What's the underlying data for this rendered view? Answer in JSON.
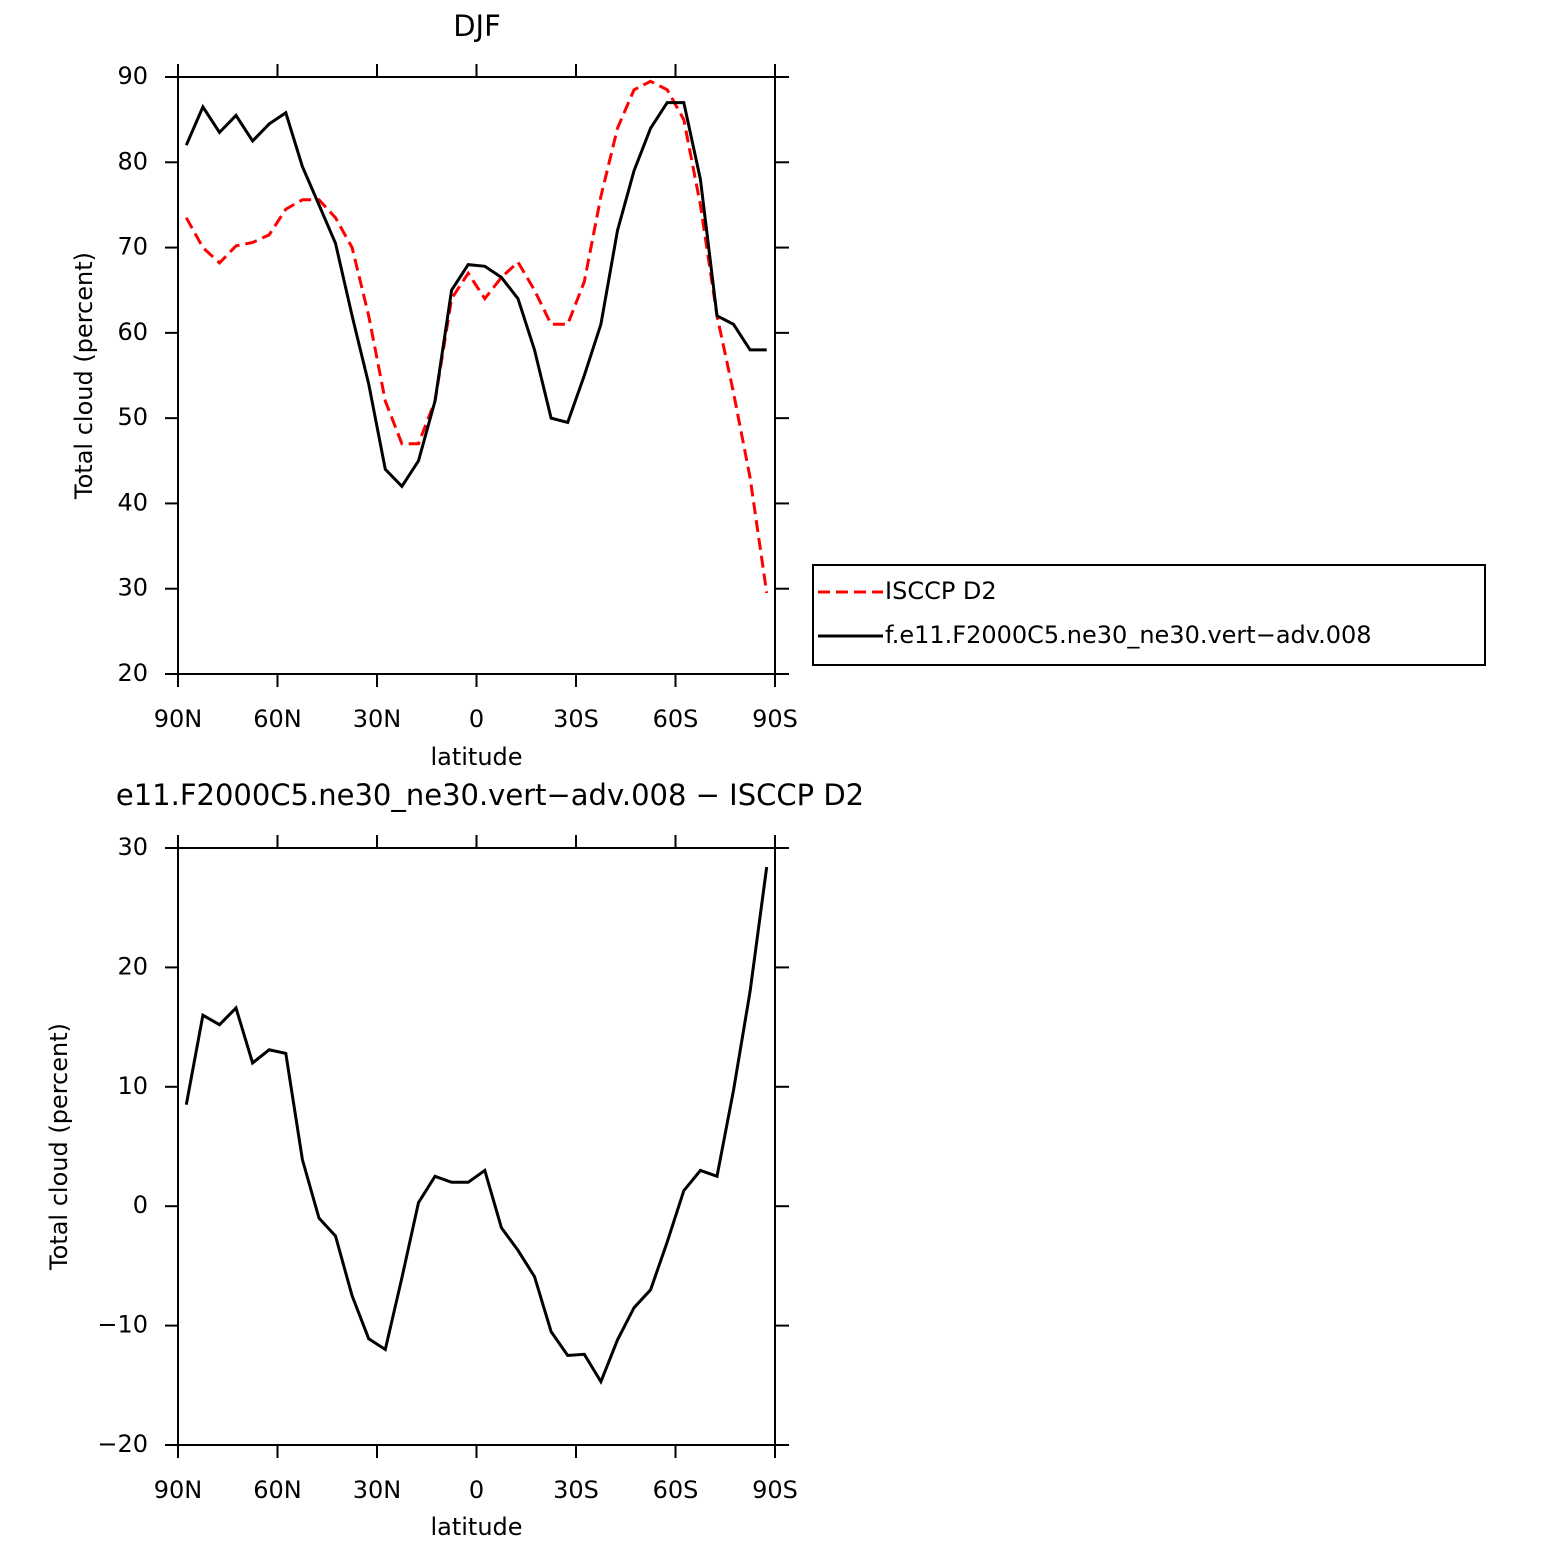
{
  "chart_data": [
    {
      "type": "line",
      "title": "DJF",
      "xlabel": "latitude",
      "ylabel": "Total cloud (percent)",
      "x": [
        87.5,
        82.5,
        77.5,
        72.5,
        67.5,
        62.5,
        57.5,
        52.5,
        47.5,
        42.5,
        37.5,
        32.5,
        27.5,
        22.5,
        17.5,
        12.5,
        7.5,
        2.5,
        -2.5,
        -7.5,
        -12.5,
        -17.5,
        -22.5,
        -27.5,
        -32.5,
        -37.5,
        -42.5,
        -47.5,
        -52.5,
        -57.5,
        -62.5,
        -67.5,
        -72.5,
        -77.5,
        -82.5,
        -87.5
      ],
      "xlim": [
        90,
        -90
      ],
      "xticks": [
        {
          "value": 90,
          "label": "90N"
        },
        {
          "value": 60,
          "label": "60N"
        },
        {
          "value": 30,
          "label": "30N"
        },
        0,
        {
          "value": -30,
          "label": "30S"
        },
        {
          "value": -60,
          "label": "60S"
        },
        {
          "value": -90,
          "label": "90S"
        }
      ],
      "ylim": [
        20,
        90
      ],
      "yticks": [
        20,
        30,
        40,
        50,
        60,
        70,
        80,
        90
      ],
      "legend": "outside-right",
      "series": [
        {
          "name": "ISCCP D2",
          "color": "#ff0000",
          "linestyle": "dashed",
          "values": [
            73.5,
            70,
            68.2,
            70.2,
            70.6,
            71.5,
            74.5,
            75.6,
            75.6,
            73.5,
            70,
            62,
            52,
            47,
            47,
            52,
            64,
            67,
            64,
            66.5,
            68.3,
            65,
            61,
            61,
            66,
            76,
            84,
            88.5,
            89.5,
            88.5,
            85,
            75,
            62,
            53,
            43,
            29.5
          ]
        },
        {
          "name": "f.e11.F2000C5.ne30_ne30.vert−adv.008",
          "color": "#000000",
          "linestyle": "solid",
          "values": [
            82,
            86.5,
            83.5,
            85.5,
            82.5,
            84.5,
            85.8,
            79.5,
            75,
            70.5,
            62,
            54,
            44,
            42,
            45,
            52,
            65,
            68,
            67.8,
            66.5,
            64,
            58,
            50,
            49.5,
            55,
            61,
            72,
            79,
            84,
            87,
            87,
            78,
            62,
            61,
            58,
            58
          ]
        }
      ]
    },
    {
      "type": "line",
      "title": "e11.F2000C5.ne30_ne30.vert−adv.008 − ISCCP D2",
      "xlabel": "latitude",
      "ylabel": "Total cloud (percent)",
      "x": [
        87.5,
        82.5,
        77.5,
        72.5,
        67.5,
        62.5,
        57.5,
        52.5,
        47.5,
        42.5,
        37.5,
        32.5,
        27.5,
        22.5,
        17.5,
        12.5,
        7.5,
        2.5,
        -2.5,
        -7.5,
        -12.5,
        -17.5,
        -22.5,
        -27.5,
        -32.5,
        -37.5,
        -42.5,
        -47.5,
        -52.5,
        -57.5,
        -62.5,
        -67.5,
        -72.5,
        -77.5,
        -82.5,
        -87.5
      ],
      "xlim": [
        90,
        -90
      ],
      "xticks": [
        {
          "value": 90,
          "label": "90N"
        },
        {
          "value": 60,
          "label": "60N"
        },
        {
          "value": 30,
          "label": "30N"
        },
        0,
        {
          "value": -30,
          "label": "30S"
        },
        {
          "value": -60,
          "label": "60S"
        },
        {
          "value": -90,
          "label": "90S"
        }
      ],
      "ylim": [
        -20,
        30
      ],
      "yticks": [
        {
          "value": -20,
          "label": "−20"
        },
        {
          "value": -10,
          "label": "−10"
        },
        0,
        10,
        20,
        30
      ],
      "series": [
        {
          "color": "#000000",
          "linestyle": "solid",
          "values": [
            8.5,
            16,
            15.2,
            16.6,
            12,
            13.1,
            12.8,
            3.9,
            -1,
            -2.5,
            -7.5,
            -11.1,
            -12,
            -6,
            0.3,
            2.5,
            2,
            2,
            3,
            -1.8,
            -3.7,
            -5.9,
            -10.5,
            -12.5,
            -12.4,
            -14.7,
            -11.2,
            -8.5,
            -7,
            -3,
            1.3,
            3,
            2.5,
            9.7,
            18,
            28.4
          ]
        }
      ]
    }
  ]
}
